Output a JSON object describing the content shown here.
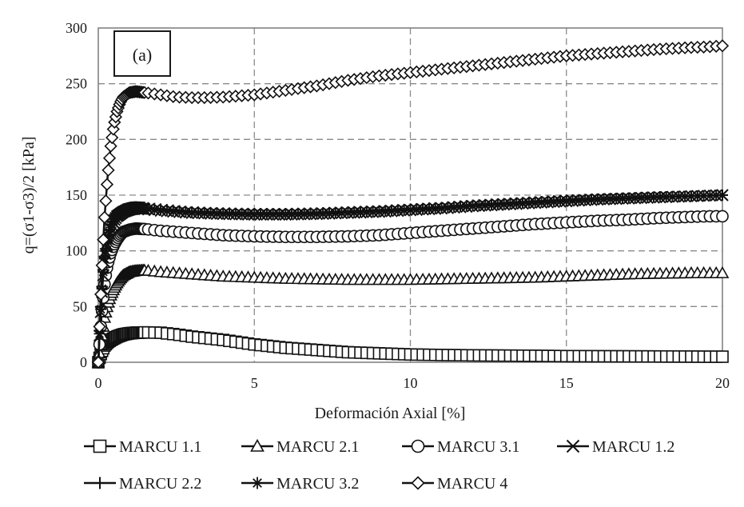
{
  "chart_data": {
    "type": "line",
    "title": "",
    "panel_label": "(a)",
    "xlabel": "Deformación Axial [%]",
    "ylabel": "q=(σ1-σ3)/2 [kPa]",
    "xlim": [
      0,
      20
    ],
    "ylim": [
      0,
      300
    ],
    "x_ticks": [
      0,
      5,
      10,
      15,
      20
    ],
    "y_ticks": [
      0,
      50,
      100,
      150,
      200,
      250,
      300
    ],
    "grid": true,
    "legend_position": "bottom",
    "series": [
      {
        "name": "MARCU 1.1",
        "marker": "square",
        "x": [
          0,
          0.05,
          0.1,
          0.15,
          0.2,
          0.3,
          0.4,
          0.5,
          0.6,
          0.7,
          0.8,
          1.0,
          1.2,
          1.5,
          2.0,
          2.5,
          3.0,
          4.0,
          5.0,
          6.0,
          7.0,
          8.0,
          9.0,
          10.0,
          11.0,
          12.0,
          13.0,
          14.0,
          15.0,
          16.0,
          17.0,
          18.0,
          19.0,
          19.5,
          20.0
        ],
        "y": [
          0,
          5,
          9,
          12,
          15,
          18,
          20,
          21.5,
          23,
          24,
          25,
          26,
          26.5,
          26.8,
          26.5,
          25,
          23,
          20,
          16,
          13,
          11,
          9,
          8,
          7,
          6.5,
          6.2,
          6,
          5.8,
          5.5,
          5.4,
          5.3,
          5.2,
          5.1,
          5,
          5
        ]
      },
      {
        "name": "MARCU 2.1",
        "marker": "triangle",
        "x": [
          0,
          0.05,
          0.1,
          0.15,
          0.2,
          0.3,
          0.4,
          0.5,
          0.6,
          0.7,
          0.8,
          1.0,
          1.2,
          1.5,
          2.0,
          3.0,
          4.0,
          5.0,
          6.0,
          7.0,
          8.0,
          9.0,
          10.0,
          11.0,
          12.0,
          13.0,
          14.0,
          15.0,
          16.0,
          17.0,
          18.0,
          19.0,
          19.5,
          20.0
        ],
        "y": [
          0,
          10,
          20,
          30,
          40,
          52,
          60,
          66,
          71,
          75,
          78,
          81,
          82,
          82.5,
          81,
          79,
          77,
          76,
          75,
          74.5,
          74,
          74,
          74,
          74.5,
          75,
          75.5,
          76,
          77,
          78,
          79,
          79.5,
          80,
          80,
          80
        ]
      },
      {
        "name": "MARCU 3.1",
        "marker": "circle",
        "x": [
          0,
          0.05,
          0.1,
          0.15,
          0.2,
          0.25,
          0.3,
          0.4,
          0.5,
          0.6,
          0.7,
          0.8,
          1.0,
          1.2,
          1.5,
          2.0,
          3.0,
          4.0,
          5.0,
          6.0,
          7.0,
          8.0,
          9.0,
          10.0,
          11.0,
          12.0,
          13.0,
          14.0,
          15.0,
          16.0,
          17.0,
          18.0,
          19.0,
          19.5,
          20.0
        ],
        "y": [
          0,
          20,
          40,
          55,
          70,
          80,
          88,
          98,
          105,
          110,
          114,
          117,
          119,
          120,
          119.5,
          118,
          116,
          114,
          113,
          112.5,
          112.5,
          113,
          114,
          116,
          118,
          120,
          122,
          124,
          125.5,
          127,
          128,
          129.5,
          130.5,
          131,
          131
        ]
      },
      {
        "name": "MARCU 1.2",
        "marker": "x",
        "x": [
          0,
          0.05,
          0.1,
          0.15,
          0.2,
          0.3,
          0.4,
          0.5,
          0.6,
          0.7,
          0.8,
          1.0,
          1.2,
          1.5,
          2.0,
          3.0,
          4.0,
          5.0,
          6.0,
          7.0,
          8.0,
          9.0,
          10.0,
          11.0,
          12.0,
          13.0,
          14.0,
          15.0,
          16.0,
          17.0,
          18.0,
          19.0,
          19.5,
          20.0
        ],
        "y": [
          0,
          30,
          55,
          75,
          90,
          108,
          120,
          127,
          131,
          133,
          135,
          137,
          138,
          137.5,
          136,
          134,
          133,
          132.5,
          132.5,
          133,
          134,
          135,
          136.5,
          138,
          140,
          141.5,
          143,
          144.5,
          146,
          147,
          148,
          149,
          149.5,
          150
        ]
      },
      {
        "name": "MARCU 2.2",
        "marker": "plus",
        "x": [
          0,
          0.05,
          0.1,
          0.15,
          0.2,
          0.3,
          0.4,
          0.5,
          0.6,
          0.7,
          0.8,
          1.0,
          1.2,
          1.5,
          2.0,
          3.0,
          4.0,
          5.0,
          6.0,
          7.0,
          8.0,
          9.0,
          10.0,
          11.0,
          12.0,
          13.0,
          14.0,
          15.0,
          16.0,
          17.0,
          18.0,
          19.0,
          19.5,
          20.0
        ],
        "y": [
          0,
          35,
          60,
          80,
          95,
          112,
          123,
          130,
          134,
          136,
          137.5,
          139,
          139.5,
          139,
          137.5,
          135,
          134,
          133.5,
          133.5,
          134,
          135,
          136,
          137.5,
          139,
          141,
          142.5,
          144,
          145.5,
          146.5,
          147.5,
          148.5,
          149,
          149.5,
          150
        ]
      },
      {
        "name": "MARCU 3.2",
        "marker": "asterisk",
        "x": [
          0,
          0.05,
          0.1,
          0.15,
          0.2,
          0.3,
          0.4,
          0.5,
          0.6,
          0.7,
          0.8,
          1.0,
          1.2,
          1.5,
          2.0,
          3.0,
          4.0,
          5.0,
          6.0,
          7.0,
          8.0,
          9.0,
          10.0,
          11.0,
          12.0,
          13.0,
          14.0,
          15.0,
          16.0,
          17.0,
          18.0,
          19.0,
          19.5,
          20.0
        ],
        "y": [
          0,
          32,
          58,
          78,
          93,
          110,
          121,
          128,
          132,
          134.5,
          136,
          138,
          138.5,
          138,
          136.5,
          134.5,
          133.5,
          133,
          133,
          133.5,
          134.5,
          135.5,
          137,
          138.5,
          140.5,
          142,
          143.5,
          145,
          146.5,
          147.5,
          148.5,
          149,
          149.5,
          150
        ]
      },
      {
        "name": "MARCU 4",
        "marker": "diamond",
        "x": [
          0,
          0.05,
          0.1,
          0.15,
          0.2,
          0.3,
          0.4,
          0.5,
          0.6,
          0.7,
          0.8,
          1.0,
          1.2,
          1.5,
          2.0,
          2.5,
          3.0,
          3.5,
          4.0,
          5.0,
          6.0,
          7.0,
          8.0,
          9.0,
          10.0,
          11.0,
          12.0,
          13.0,
          14.0,
          15.0,
          16.0,
          17.0,
          18.0,
          19.0,
          19.5,
          20.0
        ],
        "y": [
          0,
          40,
          75,
          105,
          130,
          167,
          194,
          213,
          225,
          233,
          238,
          242,
          243,
          242,
          240,
          238,
          237.5,
          237.5,
          238,
          240,
          244,
          248,
          253,
          257,
          260,
          263,
          266,
          269,
          272,
          275,
          277,
          279,
          281,
          282.5,
          283,
          284
        ]
      }
    ]
  }
}
